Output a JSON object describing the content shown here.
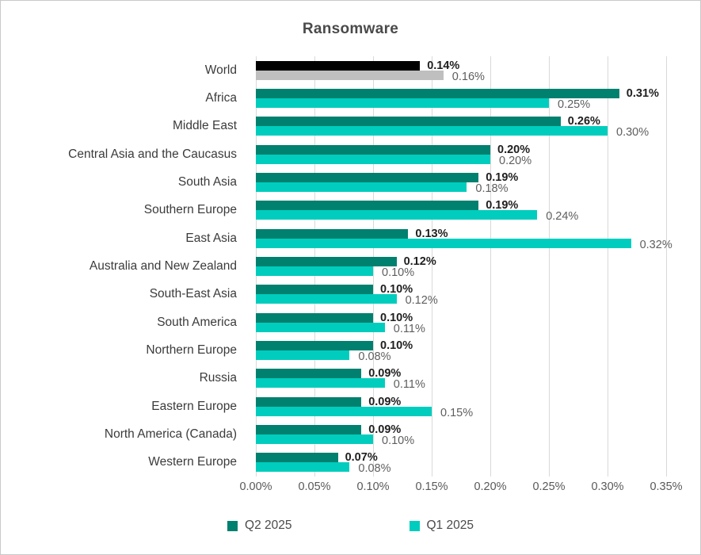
{
  "title": "Ransomware",
  "colors": {
    "q2": "#00806f",
    "q1": "#00cdbd",
    "world_q2": "#000000",
    "world_q1": "#bfbfbf",
    "gridline": "#d9d9d9",
    "label_q2": "#1f1f1f",
    "label_q1": "#5e5e5e"
  },
  "legend": {
    "items": [
      {
        "label": "Q2 2025",
        "color": "#00806f"
      },
      {
        "label": "Q1 2025",
        "color": "#00cdbd"
      }
    ]
  },
  "axis": {
    "tick_labels": [
      "0.00%",
      "0.05%",
      "0.10%",
      "0.15%",
      "0.20%",
      "0.25%",
      "0.30%",
      "0.35%"
    ]
  },
  "chart_data": {
    "type": "bar",
    "orientation": "horizontal",
    "title": "Ransomware",
    "categories": [
      "World",
      "Africa",
      "Middle East",
      "Central Asia and the Caucasus",
      "South Asia",
      "Southern Europe",
      "East Asia",
      "Australia and New Zealand",
      "South-East Asia",
      "South America",
      "Northern Europe",
      "Russia",
      "Eastern Europe",
      "North America (Canada)",
      "Western Europe"
    ],
    "series": [
      {
        "name": "Q2 2025",
        "color": "#00806f",
        "values": [
          0.14,
          0.31,
          0.26,
          0.2,
          0.19,
          0.19,
          0.13,
          0.12,
          0.1,
          0.1,
          0.1,
          0.09,
          0.09,
          0.09,
          0.07
        ],
        "labels": [
          "0.14%",
          "0.31%",
          "0.26%",
          "0.20%",
          "0.19%",
          "0.19%",
          "0.13%",
          "0.12%",
          "0.10%",
          "0.10%",
          "0.10%",
          "0.09%",
          "0.09%",
          "0.09%",
          "0.07%"
        ]
      },
      {
        "name": "Q1 2025",
        "color": "#00cdbd",
        "values": [
          0.16,
          0.25,
          0.3,
          0.2,
          0.18,
          0.24,
          0.32,
          0.1,
          0.12,
          0.11,
          0.08,
          0.11,
          0.15,
          0.1,
          0.08
        ],
        "labels": [
          "0.16%",
          "0.25%",
          "0.30%",
          "0.20%",
          "0.18%",
          "0.24%",
          "0.32%",
          "0.10%",
          "0.12%",
          "0.11%",
          "0.08%",
          "0.11%",
          "0.15%",
          "0.10%",
          "0.08%"
        ]
      }
    ],
    "row_color_overrides": {
      "0": {
        "q2": "#000000",
        "q1": "#bfbfbf"
      }
    },
    "xlabel": "",
    "ylabel": "",
    "xlim": [
      0,
      0.35
    ],
    "tick_step": 0.05,
    "tick_labels": [
      "0.00%",
      "0.05%",
      "0.10%",
      "0.15%",
      "0.20%",
      "0.25%",
      "0.30%",
      "0.35%"
    ],
    "grid": "vertical",
    "legend_position": "bottom",
    "value_label_style": {
      "q2": "bold dark",
      "q1": "regular gray"
    }
  }
}
